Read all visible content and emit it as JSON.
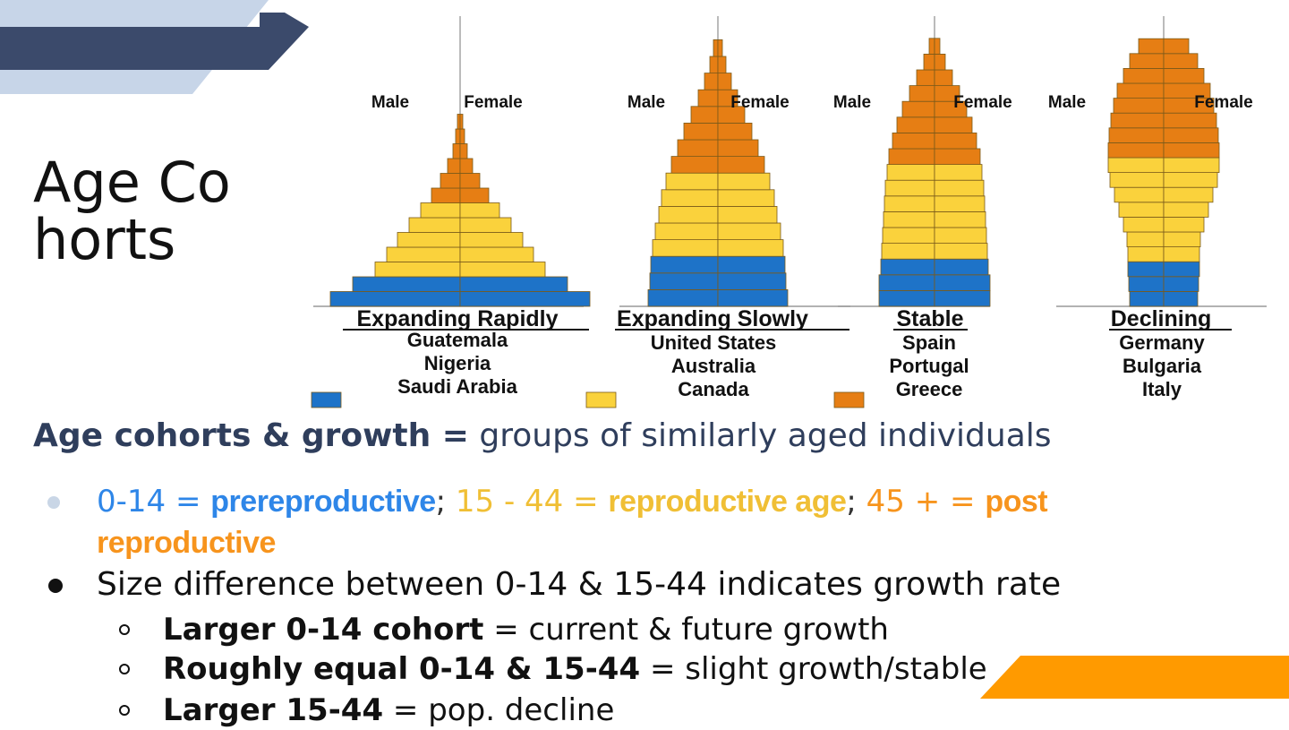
{
  "slide": {
    "title": "Age Cohorts",
    "heading_bold": "Age cohorts & growth =",
    "heading_rest": " groups of similarly aged individuals",
    "bullet1": {
      "a": "0-14 = ",
      "a_bold": "prereproductive",
      "sep1": "; ",
      "b": "15 - 44 = ",
      "b_bold": "reproductive age",
      "sep2": "; ",
      "c": "45 + = ",
      "c_bold": "post reproductive"
    },
    "bullet2": "Size difference between 0-14 & 15-44 indicates growth rate",
    "subbullets": [
      {
        "bold": "Larger 0-14 cohort",
        "rest": " = current & future growth"
      },
      {
        "bold": "Roughly equal 0-14 & 15-44",
        "rest": " = slight growth/stable"
      },
      {
        "bold": "Larger 15-44",
        "rest": " = pop. decline"
      }
    ],
    "colors": {
      "blue": "#1e73c8",
      "yellow": "#fad23c",
      "orange": "#e67e14",
      "navy": "#3b4a6b",
      "lightblue": "#c7d5e8",
      "accent_orange": "#ff9a00"
    }
  },
  "diagram": {
    "pyramids": [
      {
        "title": "Expanding Rapidly",
        "countries": [
          "Guatemala",
          "Nigeria",
          "Saudi Arabia"
        ],
        "male_label": "Male",
        "female_label": "Female"
      },
      {
        "title": "Expanding Slowly",
        "countries": [
          "United States",
          "Australia",
          "Canada"
        ],
        "male_label": "Male",
        "female_label": "Female"
      },
      {
        "title": "Stable",
        "countries": [
          "Spain",
          "Portugal",
          "Greece"
        ],
        "male_label": "Male",
        "female_label": "Female"
      },
      {
        "title": "Declining",
        "countries": [
          "Germany",
          "Bulgaria",
          "Italy"
        ],
        "male_label": "Male",
        "female_label": "Female"
      }
    ],
    "legend_icons": [
      "blue-swatch",
      "yellow-swatch",
      "orange-swatch"
    ]
  }
}
